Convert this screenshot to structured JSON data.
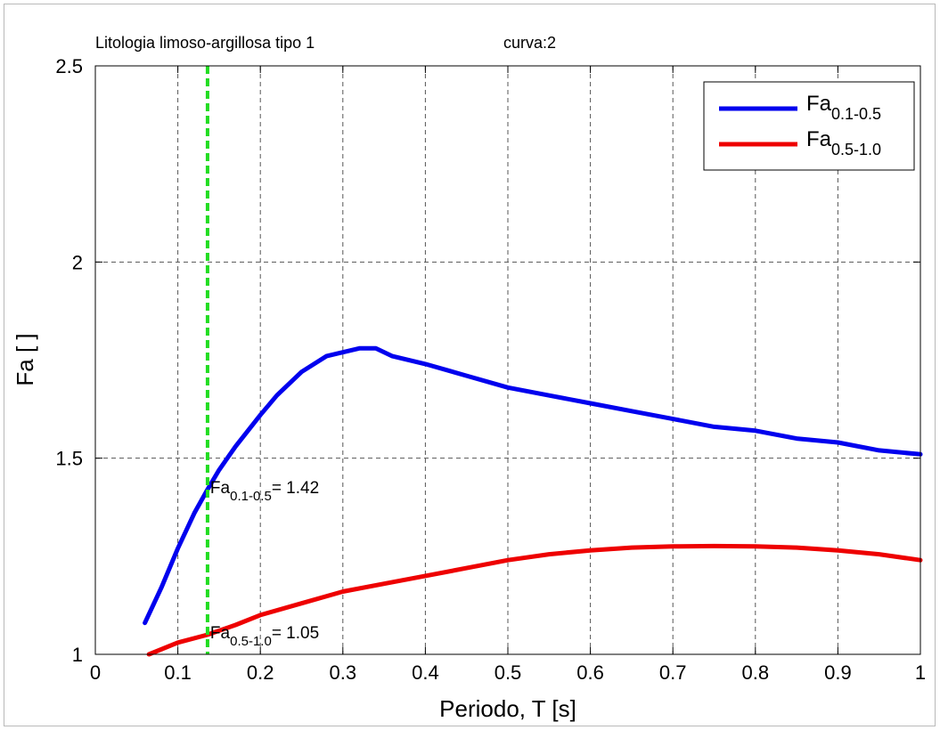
{
  "chart_data": {
    "type": "line",
    "title_left": "Litologia limoso-argillosa tipo 1",
    "title_right": "curva:2",
    "xlabel": "Periodo, T [s]",
    "ylabel": "Fa [ ]",
    "xlim": [
      0,
      1
    ],
    "ylim": [
      1,
      2.5
    ],
    "x_ticks": [
      "0",
      "0.1",
      "0.2",
      "0.3",
      "0.4",
      "0.5",
      "0.6",
      "0.7",
      "0.8",
      "0.9",
      "1"
    ],
    "x_tick_values": [
      0,
      0.1,
      0.2,
      0.3,
      0.4,
      0.5,
      0.6,
      0.7,
      0.8,
      0.9,
      1
    ],
    "y_ticks": [
      "1",
      "1.5",
      "2",
      "2.5"
    ],
    "y_tick_values": [
      1,
      1.5,
      2,
      2.5
    ],
    "grid": true,
    "legend_position": "top-right",
    "vline": {
      "x": 0.136,
      "color": "#22dd22"
    },
    "series": [
      {
        "name": "Fa",
        "name_sub": "0.1-0.5",
        "color": "#0000ee",
        "x": [
          0.06,
          0.08,
          0.1,
          0.12,
          0.136,
          0.15,
          0.17,
          0.2,
          0.22,
          0.25,
          0.28,
          0.3,
          0.32,
          0.34,
          0.36,
          0.4,
          0.45,
          0.5,
          0.55,
          0.6,
          0.65,
          0.7,
          0.75,
          0.8,
          0.85,
          0.9,
          0.95,
          1.0
        ],
        "y": [
          1.08,
          1.17,
          1.27,
          1.36,
          1.42,
          1.47,
          1.53,
          1.61,
          1.66,
          1.72,
          1.76,
          1.77,
          1.78,
          1.78,
          1.76,
          1.74,
          1.71,
          1.68,
          1.66,
          1.64,
          1.62,
          1.6,
          1.58,
          1.57,
          1.55,
          1.54,
          1.52,
          1.51
        ]
      },
      {
        "name": "Fa",
        "name_sub": "0.5-1.0",
        "color": "#ee0000",
        "x": [
          0.065,
          0.1,
          0.136,
          0.17,
          0.2,
          0.25,
          0.3,
          0.35,
          0.4,
          0.45,
          0.5,
          0.55,
          0.6,
          0.65,
          0.7,
          0.75,
          0.8,
          0.85,
          0.9,
          0.95,
          1.0
        ],
        "y": [
          1.0,
          1.03,
          1.05,
          1.075,
          1.1,
          1.13,
          1.16,
          1.18,
          1.2,
          1.22,
          1.24,
          1.255,
          1.265,
          1.272,
          1.275,
          1.276,
          1.275,
          1.272,
          1.265,
          1.255,
          1.24
        ]
      }
    ],
    "annotations": [
      {
        "base": "Fa",
        "sub": "0.1-0.5",
        "text": "= 1.42",
        "x": 0.136,
        "y": 1.42
      },
      {
        "base": "Fa",
        "sub": "0.5-1.0",
        "text": "= 1.05",
        "x": 0.136,
        "y": 1.05
      }
    ]
  }
}
